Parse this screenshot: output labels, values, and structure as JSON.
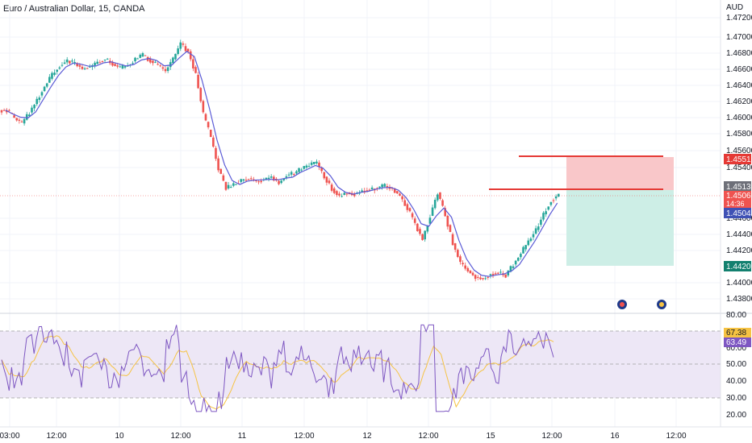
{
  "title": "Euro / Australian Dollar, 15, OANDA",
  "currency": "AUD",
  "colors": {
    "up": "#26a69a",
    "down": "#ef5350",
    "ma": "#5b5bd6",
    "rsi_line": "#7e57c2",
    "rsi_ma": "#f6c343",
    "stop_zone": "#f9c7c9",
    "target_zone": "#cdeee6",
    "level_line": "#e53935",
    "rsi_band": "#ede7f6"
  },
  "price_axis": {
    "ticks": [
      "1.47200",
      "1.47000",
      "1.46800",
      "1.46600",
      "1.46400",
      "1.46200",
      "1.46000",
      "1.45800",
      "1.45600",
      "1.45400",
      "1.44600",
      "1.44400",
      "1.44200",
      "1.44000",
      "1.43800"
    ],
    "badges": {
      "stop": "1.45517",
      "entry": "1.45133",
      "last": "1.45069",
      "countdown": "14:36",
      "ma_value": "1.45047",
      "target": "1.44207"
    }
  },
  "rsi_axis": {
    "ticks": [
      "80.00",
      "70.00",
      "60.00",
      "50.00",
      "40.00",
      "30.00",
      "20.00"
    ],
    "badges": {
      "rsi": "67.38",
      "rsi_ma": "63.49"
    }
  },
  "time_axis": {
    "labels": [
      "03:00",
      "12:00",
      "10",
      "12:00",
      "11",
      "12:00",
      "12",
      "12:00",
      "15",
      "12:00",
      "16",
      "12:00"
    ]
  },
  "chart_data": {
    "type": "line",
    "description_series": [
      {
        "name": "close",
        "values": [
          1.4615,
          1.4605,
          1.4598,
          1.4612,
          1.4628,
          1.4645,
          1.466,
          1.4672,
          1.4678,
          1.4675,
          1.4668,
          1.467,
          1.4676,
          1.468,
          1.4674,
          1.4668,
          1.4672,
          1.468,
          1.4685,
          1.4678,
          1.4672,
          1.4665,
          1.468,
          1.47,
          1.469,
          1.466,
          1.461,
          1.458,
          1.454,
          1.4515,
          1.452,
          1.4525,
          1.4528,
          1.4524,
          1.4526,
          1.453,
          1.4522,
          1.4532,
          1.4534,
          1.454,
          1.4545,
          1.4548,
          1.453,
          1.4515,
          1.4505,
          1.451,
          1.4508,
          1.4512,
          1.4514,
          1.4516,
          1.4518,
          1.4515,
          1.4505,
          1.449,
          1.447,
          1.445,
          1.448,
          1.451,
          1.448,
          1.4445,
          1.442,
          1.441,
          1.4402,
          1.44,
          1.4406,
          1.4408,
          1.4404,
          1.4418,
          1.4432,
          1.4448,
          1.4462,
          1.4482,
          1.45,
          1.4507
        ]
      }
    ],
    "ylim": [
      1.437,
      1.4735
    ]
  }
}
